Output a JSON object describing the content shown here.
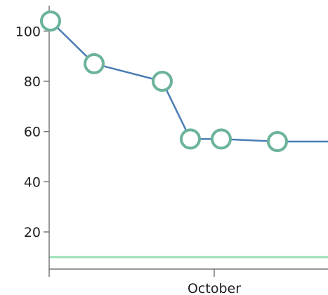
{
  "chart_data": {
    "type": "line",
    "title": "",
    "xlabel": "",
    "ylabel": "",
    "x_tick_labels": [
      "October"
    ],
    "y_ticks": [
      20,
      40,
      60,
      80,
      100
    ],
    "ylim": [
      5,
      110
    ],
    "grid": false,
    "series": [
      {
        "color": "#4a7db3",
        "marker_color": "#6bb39a",
        "marker": "hollow-circle",
        "points": [
          {
            "x": 1,
            "y": 104
          },
          {
            "x": 2,
            "y": 87
          },
          {
            "x": 3,
            "y": 80
          },
          {
            "x": 4,
            "y": 57
          },
          {
            "x": 5,
            "y": 57
          },
          {
            "x": 6,
            "y": 56
          },
          {
            "x": 7,
            "y": 56
          }
        ]
      }
    ],
    "reference_lines": [
      {
        "y": 10,
        "color": "#9be0b4"
      }
    ]
  }
}
